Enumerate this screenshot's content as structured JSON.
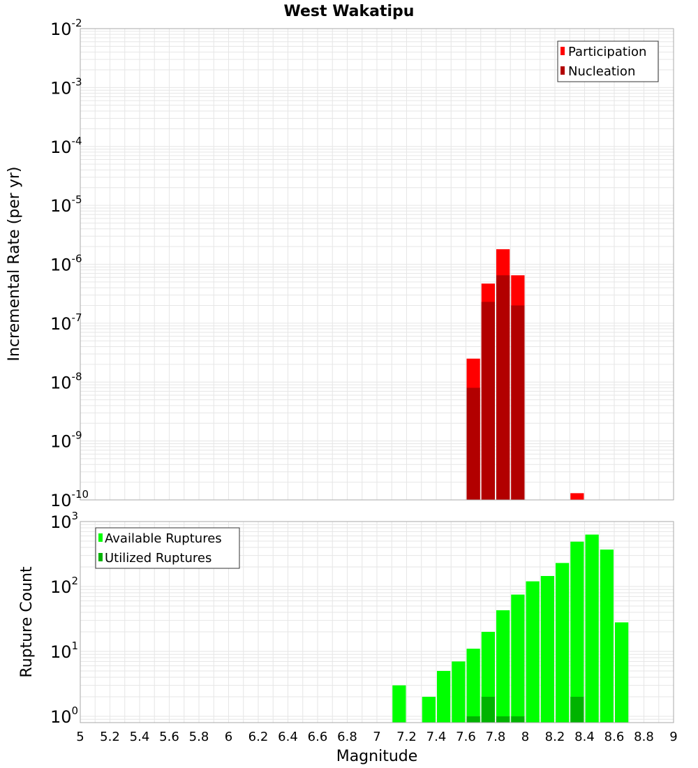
{
  "title": "West Wakatipu",
  "xlabel": "Magnitude",
  "chart_data": [
    {
      "type": "bar",
      "panel": "top",
      "ylabel": "Incremental Rate (per yr)",
      "yscale": "log",
      "ylim": [
        1e-10,
        0.01
      ],
      "xlim": [
        5,
        9
      ],
      "grid": true,
      "legend_position": "top-right",
      "x": [
        7.65,
        7.75,
        7.85,
        7.95,
        8.35
      ],
      "series": [
        {
          "name": "Participation",
          "color": "#ff0000",
          "values": [
            2.5e-08,
            4.7e-07,
            1.8e-06,
            6.5e-07,
            1.3e-10
          ]
        },
        {
          "name": "Nucleation",
          "color": "#b20000",
          "values": [
            8e-09,
            2.3e-07,
            6.5e-07,
            2e-07,
            null
          ]
        }
      ],
      "ytick_exponents": [
        "-10",
        "-9",
        "-8",
        "-7",
        "-6",
        "-5",
        "-4",
        "-3",
        "-2"
      ]
    },
    {
      "type": "bar",
      "panel": "bottom",
      "ylabel": "Rupture Count",
      "yscale": "log",
      "ylim": [
        0.8,
        1000
      ],
      "xlim": [
        5,
        9
      ],
      "grid": true,
      "legend_position": "top-left",
      "x": [
        7.15,
        7.35,
        7.45,
        7.55,
        7.65,
        7.75,
        7.85,
        7.95,
        8.05,
        8.15,
        8.25,
        8.35,
        8.45,
        8.55,
        8.65
      ],
      "series": [
        {
          "name": "Available Ruptures",
          "color": "#00ff00",
          "values": [
            3,
            2,
            5,
            7,
            11,
            20,
            43,
            75,
            120,
            145,
            230,
            490,
            630,
            370,
            28
          ]
        },
        {
          "name": "Utilized Ruptures",
          "color": "#00b300",
          "values": [
            null,
            null,
            null,
            null,
            1,
            2,
            1,
            1,
            null,
            null,
            null,
            2,
            null,
            null,
            null
          ]
        }
      ],
      "ytick_exponents": [
        "0",
        "1",
        "2",
        "3"
      ]
    }
  ],
  "xticks": [
    "5",
    "5.2",
    "5.4",
    "5.6",
    "5.8",
    "6",
    "6.2",
    "6.4",
    "6.6",
    "6.8",
    "7",
    "7.2",
    "7.4",
    "7.6",
    "7.8",
    "8",
    "8.2",
    "8.4",
    "8.6",
    "8.8",
    "9"
  ],
  "ytick_base": "10",
  "colors": {
    "plot_border": "#aaaaaa",
    "grid": "#e6e6e6",
    "background": "#ffffff"
  }
}
